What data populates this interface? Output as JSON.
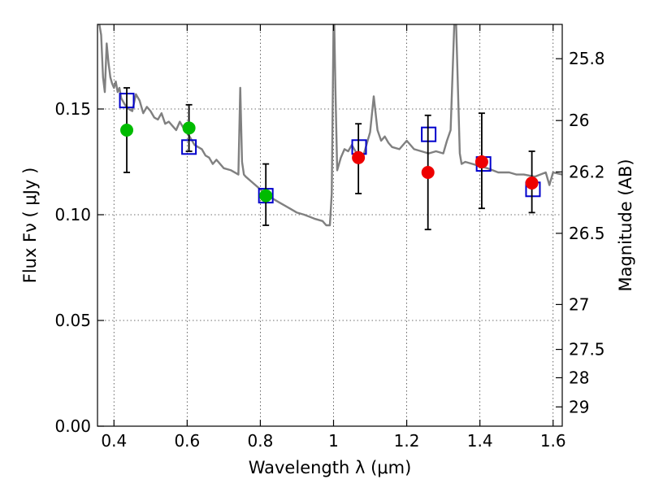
{
  "chart_data": {
    "type": "scatter",
    "xlabel": "Wavelength  λ (μm)",
    "ylabel": "Flux  Fν  ( μJy )",
    "y2label": "Magnitude (AB)",
    "xlim": [
      0.355,
      1.625
    ],
    "ylim": [
      0.0,
      0.19
    ],
    "xticks": [
      0.4,
      0.6,
      0.8,
      1.0,
      1.2,
      1.4,
      1.6
    ],
    "xtick_labels": [
      "0.4",
      "0.6",
      "0.8",
      "1",
      "1.2",
      "1.4",
      "1.6"
    ],
    "yticks": [
      0.0,
      0.05,
      0.1,
      0.15
    ],
    "ytick_labels": [
      "0.00",
      "0.05",
      "0.10",
      "0.15"
    ],
    "y2ticks": [
      25.8,
      26,
      26.2,
      26.5,
      27,
      27.5,
      28,
      29
    ],
    "y2tick_labels": [
      "25.8",
      "26",
      "26.2",
      "26.5",
      "27",
      "27.5",
      "28",
      "29"
    ],
    "grid": true,
    "colors": {
      "model": "#808080",
      "model_flux": "#0000cc",
      "observed_optical": "#00bb00",
      "observed_nir": "#ee0000",
      "error_bar": "#000000"
    },
    "series": [
      {
        "kind": "line",
        "x": [
          0.36,
          0.365,
          0.37,
          0.375,
          0.38,
          0.385,
          0.39,
          0.395,
          0.4,
          0.405,
          0.41,
          0.415,
          0.42,
          0.43,
          0.44,
          0.45,
          0.46,
          0.47,
          0.48,
          0.49,
          0.5,
          0.51,
          0.52,
          0.53,
          0.54,
          0.55,
          0.56,
          0.57,
          0.58,
          0.59,
          0.6,
          0.62,
          0.64,
          0.65,
          0.66,
          0.67,
          0.68,
          0.7,
          0.72,
          0.74,
          0.745,
          0.75,
          0.755,
          0.76,
          0.78,
          0.8,
          0.82,
          0.85,
          0.88,
          0.9,
          0.92,
          0.95,
          0.97,
          0.98,
          0.99,
          0.995,
          1.0,
          1.002,
          1.005,
          1.01,
          1.02,
          1.03,
          1.04,
          1.05,
          1.06,
          1.08,
          1.1,
          1.11,
          1.12,
          1.13,
          1.14,
          1.15,
          1.16,
          1.18,
          1.2,
          1.22,
          1.24,
          1.26,
          1.28,
          1.3,
          1.31,
          1.32,
          1.33,
          1.335,
          1.34,
          1.345,
          1.35,
          1.36,
          1.38,
          1.4,
          1.42,
          1.45,
          1.48,
          1.5,
          1.52,
          1.55,
          1.58,
          1.59,
          1.6,
          1.625
        ],
        "y": [
          0.19,
          0.185,
          0.165,
          0.158,
          0.181,
          0.172,
          0.165,
          0.162,
          0.16,
          0.163,
          0.158,
          0.16,
          0.155,
          0.152,
          0.15,
          0.149,
          0.157,
          0.154,
          0.148,
          0.151,
          0.149,
          0.146,
          0.145,
          0.148,
          0.143,
          0.144,
          0.142,
          0.14,
          0.144,
          0.141,
          0.139,
          0.133,
          0.131,
          0.128,
          0.127,
          0.124,
          0.126,
          0.122,
          0.121,
          0.119,
          0.16,
          0.125,
          0.119,
          0.118,
          0.115,
          0.112,
          0.109,
          0.106,
          0.103,
          0.101,
          0.1,
          0.098,
          0.097,
          0.095,
          0.095,
          0.11,
          0.19,
          0.19,
          0.16,
          0.121,
          0.127,
          0.131,
          0.13,
          0.133,
          0.13,
          0.127,
          0.139,
          0.156,
          0.14,
          0.135,
          0.137,
          0.134,
          0.132,
          0.131,
          0.135,
          0.131,
          0.13,
          0.129,
          0.13,
          0.129,
          0.135,
          0.14,
          0.19,
          0.19,
          0.16,
          0.129,
          0.124,
          0.125,
          0.124,
          0.123,
          0.122,
          0.12,
          0.12,
          0.119,
          0.119,
          0.118,
          0.12,
          0.114,
          0.12,
          0.119
        ]
      },
      {
        "kind": "squares",
        "x": [
          0.435,
          0.605,
          0.815,
          1.07,
          1.26,
          1.41,
          1.545
        ],
        "y": [
          0.154,
          0.132,
          0.109,
          0.132,
          0.138,
          0.124,
          0.112
        ]
      },
      {
        "kind": "points",
        "x": [
          0.435,
          0.605,
          0.815
        ],
        "y": [
          0.14,
          0.141,
          0.109
        ],
        "yerr_low": [
          0.12,
          0.13,
          0.095
        ],
        "yerr_high": [
          0.16,
          0.152,
          0.124
        ]
      },
      {
        "kind": "points",
        "x": [
          1.068,
          1.258,
          1.405,
          1.542
        ],
        "y": [
          0.127,
          0.12,
          0.125,
          0.115
        ],
        "yerr_low": [
          0.11,
          0.093,
          0.103,
          0.101
        ],
        "yerr_high": [
          0.143,
          0.147,
          0.148,
          0.13
        ]
      }
    ]
  }
}
